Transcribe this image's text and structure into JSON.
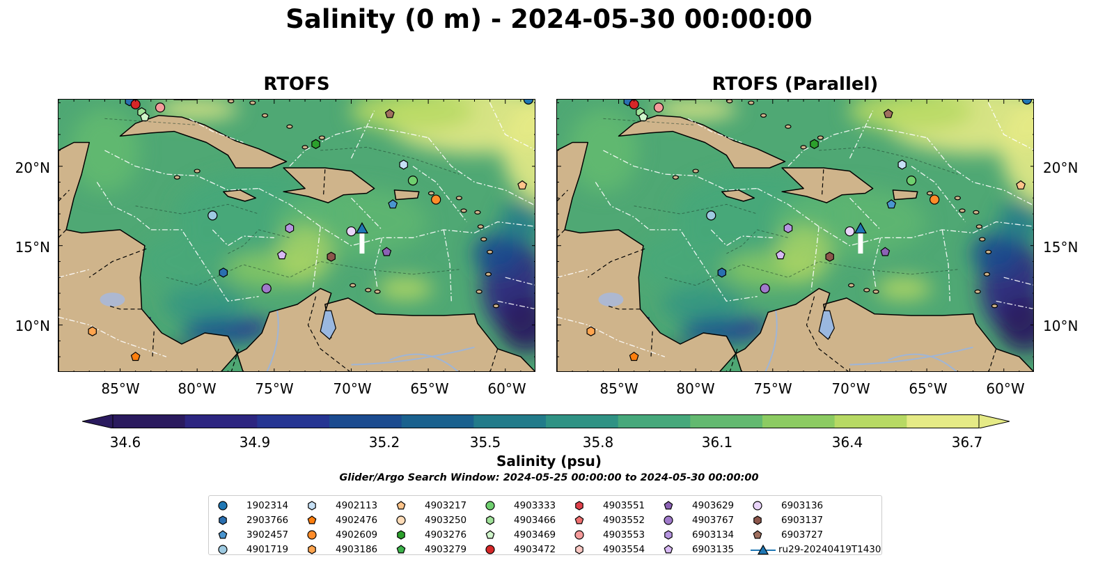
{
  "figure": {
    "title": "Salinity (0 m) - 2024-05-30 00:00:00",
    "panels": [
      {
        "title": "RTOFS"
      },
      {
        "title": "RTOFS (Parallel)"
      }
    ],
    "lat_labels": [
      "20°N",
      "15°N",
      "10°N"
    ],
    "lon_labels": [
      "85°W",
      "80°W",
      "75°W",
      "70°W",
      "65°W",
      "60°W"
    ],
    "extent": {
      "lon": [
        -89,
        -58
      ],
      "lat": [
        7,
        24.2
      ]
    }
  },
  "colorbar": {
    "label": "Salinity (psu)",
    "ticks": [
      "34.6",
      "34.9",
      "35.2",
      "35.5",
      "35.8",
      "36.1",
      "36.4",
      "36.7"
    ],
    "range": [
      34.6,
      36.7
    ],
    "extend": "both",
    "colors": [
      "#2a1a5e",
      "#2c2580",
      "#253592",
      "#1b4b8f",
      "#1a618e",
      "#227b8a",
      "#2f9284",
      "#46a87b",
      "#63b970",
      "#8ccb62",
      "#b7d964",
      "#e5ea86"
    ]
  },
  "search_window": "Glider/Argo Search Window: 2024-05-25 00:00:00 to 2024-05-30 00:00:00",
  "legend": [
    {
      "label": "1902314",
      "marker": "circle",
      "color": "#1f77b4"
    },
    {
      "label": "2903766",
      "marker": "hexagon",
      "color": "#2a6fb0"
    },
    {
      "label": "3902457",
      "marker": "pentagon",
      "color": "#4a95cf"
    },
    {
      "label": "4901719",
      "marker": "circle",
      "color": "#9ecae1"
    },
    {
      "label": "4902113",
      "marker": "hexagon",
      "color": "#c6e0f5"
    },
    {
      "label": "4902476",
      "marker": "pentagon",
      "color": "#ff7f0e"
    },
    {
      "label": "4902609",
      "marker": "circle",
      "color": "#ff8c2a"
    },
    {
      "label": "4903186",
      "marker": "hexagon",
      "color": "#ffa54f"
    },
    {
      "label": "4903217",
      "marker": "pentagon",
      "color": "#ffc48a"
    },
    {
      "label": "4903250",
      "marker": "circle",
      "color": "#ffdcb8"
    },
    {
      "label": "4903276",
      "marker": "hexagon",
      "color": "#2ca02c"
    },
    {
      "label": "4903279",
      "marker": "pentagon",
      "color": "#3cb34a"
    },
    {
      "label": "4903333",
      "marker": "circle",
      "color": "#6fcf6f"
    },
    {
      "label": "4903466",
      "marker": "hexagon",
      "color": "#a1e29a"
    },
    {
      "label": "4903469",
      "marker": "pentagon",
      "color": "#d0f5cb"
    },
    {
      "label": "4903472",
      "marker": "circle",
      "color": "#d62728"
    },
    {
      "label": "4903551",
      "marker": "hexagon",
      "color": "#e0404a"
    },
    {
      "label": "4903552",
      "marker": "pentagon",
      "color": "#ef7070"
    },
    {
      "label": "4903553",
      "marker": "circle",
      "color": "#f59b9b"
    },
    {
      "label": "4903554",
      "marker": "hexagon",
      "color": "#fbc9c4"
    },
    {
      "label": "4903629",
      "marker": "pentagon",
      "color": "#8c62b5"
    },
    {
      "label": "4903767",
      "marker": "circle",
      "color": "#a07acb"
    },
    {
      "label": "6903134",
      "marker": "hexagon",
      "color": "#b695e0"
    },
    {
      "label": "6903135",
      "marker": "pentagon",
      "color": "#d7b8f3"
    },
    {
      "label": "6903136",
      "marker": "circle",
      "color": "#ead5fa"
    },
    {
      "label": "6903137",
      "marker": "hexagon",
      "color": "#8c564b"
    },
    {
      "label": "6903727",
      "marker": "pentagon",
      "color": "#a0705f"
    },
    {
      "label": "ru29-20240419T1430",
      "marker": "triangle-line",
      "color": "#1f77b4"
    }
  ],
  "floats": [
    {
      "id": "1902314",
      "lon": -58.5,
      "lat": 24.2
    },
    {
      "id": "2903766",
      "lon": -84.4,
      "lat": 24.1
    },
    {
      "id": "4903472",
      "lon": -84.0,
      "lat": 23.9
    },
    {
      "id": "4903553",
      "lon": -82.4,
      "lat": 23.7
    },
    {
      "id": "4903466",
      "lon": -83.6,
      "lat": 23.4
    },
    {
      "id": "4903469",
      "lon": -83.4,
      "lat": 23.1
    },
    {
      "id": "6903727",
      "lon": -67.5,
      "lat": 23.3
    },
    {
      "id": "4903276",
      "lon": -72.3,
      "lat": 21.4
    },
    {
      "id": "4902113",
      "lon": -66.6,
      "lat": 20.1
    },
    {
      "id": "4903333",
      "lon": -66.0,
      "lat": 19.1
    },
    {
      "id": "4903217",
      "lon": -58.9,
      "lat": 18.8
    },
    {
      "id": "4902609",
      "lon": -64.5,
      "lat": 17.9
    },
    {
      "id": "3902457",
      "lon": -67.3,
      "lat": 17.6
    },
    {
      "id": "4901719",
      "lon": -79.0,
      "lat": 16.9
    },
    {
      "id": "6903134",
      "lon": -74.0,
      "lat": 16.1
    },
    {
      "id": "6903136",
      "lon": -70.0,
      "lat": 15.9
    },
    {
      "id": "4903629",
      "lon": -67.7,
      "lat": 14.6
    },
    {
      "id": "6903135",
      "lon": -74.5,
      "lat": 14.4
    },
    {
      "id": "6903137",
      "lon": -71.3,
      "lat": 14.3
    },
    {
      "id": "2903766",
      "lon": -78.3,
      "lat": 13.3
    },
    {
      "id": "4903767",
      "lon": -75.5,
      "lat": 12.3
    },
    {
      "id": "4903186",
      "lon": -86.8,
      "lat": 9.6
    },
    {
      "id": "4902476",
      "lon": -84.0,
      "lat": 8.0
    }
  ],
  "glider": {
    "id": "ru29-20240419T1430",
    "lon": -69.3,
    "lat": 15.9,
    "track_end_lat": 14.5
  }
}
